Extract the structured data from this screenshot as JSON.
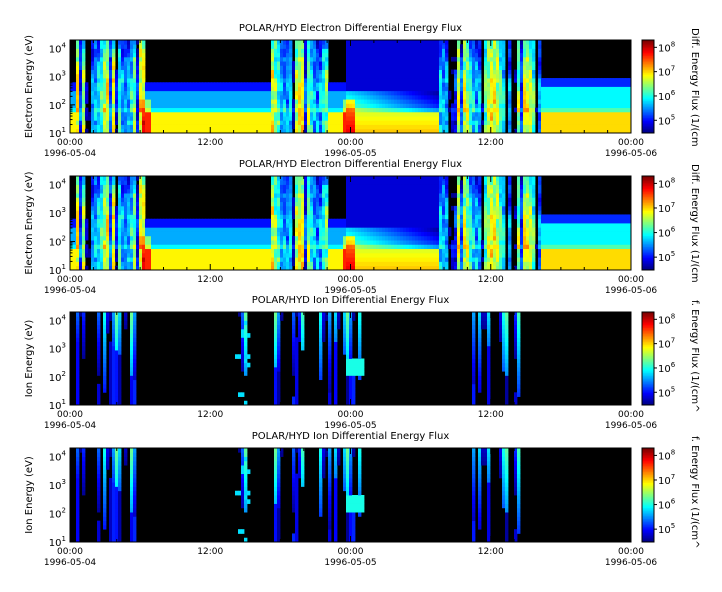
{
  "chart_data": [
    {
      "type": "heatmap",
      "title": "POLAR/HYD  Electron Differential Energy Flux",
      "ylabel": "Electron Energy (eV)",
      "colorbar_label": "Diff. Energy Flux (1/(cm",
      "y_scale": "log",
      "ylim": [
        10,
        20000
      ],
      "y_ticks": [
        {
          "v": 10,
          "m": "1"
        },
        {
          "v": 100,
          "m": "2"
        },
        {
          "v": 1000,
          "m": "3"
        },
        {
          "v": 10000,
          "m": "4"
        }
      ],
      "x_range_hours": [
        0,
        48
      ],
      "x_ticks": [
        {
          "h": 0,
          "time": "00:00",
          "date": "1996-05-04"
        },
        {
          "h": 12,
          "time": "12:00",
          "date": ""
        },
        {
          "h": 24,
          "time": "00:00",
          "date": "1996-05-05"
        },
        {
          "h": 36,
          "time": "12:00",
          "date": ""
        },
        {
          "h": 48,
          "time": "00:00",
          "date": "1996-05-06"
        }
      ],
      "colorbar_range": [
        30000,
        200000000
      ],
      "colorbar_ticks": [
        {
          "v": 100000,
          "m": "5"
        },
        {
          "v": 1000000,
          "m": "6"
        },
        {
          "v": 10000000,
          "m": "7"
        },
        {
          "v": 100000000,
          "m": "8"
        }
      ],
      "colormap": "rainbow",
      "species": "electron"
    },
    {
      "type": "heatmap",
      "title": "POLAR/HYD  Electron Differential Energy Flux",
      "ylabel": "Electron Energy (eV)",
      "colorbar_label": "Diff. Energy Flux (1/(cm",
      "y_scale": "log",
      "ylim": [
        10,
        20000
      ],
      "y_ticks": [
        {
          "v": 10,
          "m": "1"
        },
        {
          "v": 100,
          "m": "2"
        },
        {
          "v": 1000,
          "m": "3"
        },
        {
          "v": 10000,
          "m": "4"
        }
      ],
      "x_range_hours": [
        0,
        48
      ],
      "x_ticks": [
        {
          "h": 0,
          "time": "00:00",
          "date": "1996-05-04"
        },
        {
          "h": 12,
          "time": "12:00",
          "date": ""
        },
        {
          "h": 24,
          "time": "00:00",
          "date": "1996-05-05"
        },
        {
          "h": 36,
          "time": "12:00",
          "date": ""
        },
        {
          "h": 48,
          "time": "00:00",
          "date": "1996-05-06"
        }
      ],
      "colorbar_range": [
        30000,
        200000000
      ],
      "colorbar_ticks": [
        {
          "v": 100000,
          "m": "5"
        },
        {
          "v": 1000000,
          "m": "6"
        },
        {
          "v": 10000000,
          "m": "7"
        },
        {
          "v": 100000000,
          "m": "8"
        }
      ],
      "colormap": "rainbow",
      "species": "electron"
    },
    {
      "type": "heatmap",
      "title": "POLAR/HYD  Ion Differential Energy Flux",
      "ylabel": "Ion Energy (eV)",
      "colorbar_label": "f. Energy Flux (1/(cm^",
      "y_scale": "log",
      "ylim": [
        10,
        20000
      ],
      "y_ticks": [
        {
          "v": 10,
          "m": "1"
        },
        {
          "v": 100,
          "m": "2"
        },
        {
          "v": 1000,
          "m": "3"
        },
        {
          "v": 10000,
          "m": "4"
        }
      ],
      "x_range_hours": [
        0,
        48
      ],
      "x_ticks": [
        {
          "h": 0,
          "time": "00:00",
          "date": "1996-05-04"
        },
        {
          "h": 12,
          "time": "12:00",
          "date": ""
        },
        {
          "h": 24,
          "time": "00:00",
          "date": "1996-05-05"
        },
        {
          "h": 36,
          "time": "12:00",
          "date": ""
        },
        {
          "h": 48,
          "time": "00:00",
          "date": "1996-05-06"
        }
      ],
      "colorbar_range": [
        30000,
        200000000
      ],
      "colorbar_ticks": [
        {
          "v": 100000,
          "m": "5"
        },
        {
          "v": 1000000,
          "m": "6"
        },
        {
          "v": 10000000,
          "m": "7"
        },
        {
          "v": 100000000,
          "m": "8"
        }
      ],
      "colormap": "rainbow",
      "species": "ion"
    },
    {
      "type": "heatmap",
      "title": "POLAR/HYD  Ion Differential Energy Flux",
      "ylabel": "Ion Energy (eV)",
      "colorbar_label": "f. Energy Flux (1/(cm^",
      "y_scale": "log",
      "ylim": [
        10,
        20000
      ],
      "y_ticks": [
        {
          "v": 10,
          "m": "1"
        },
        {
          "v": 100,
          "m": "2"
        },
        {
          "v": 1000,
          "m": "3"
        },
        {
          "v": 10000,
          "m": "4"
        }
      ],
      "x_range_hours": [
        0,
        48
      ],
      "x_ticks": [
        {
          "h": 0,
          "time": "00:00",
          "date": "1996-05-04"
        },
        {
          "h": 12,
          "time": "12:00",
          "date": ""
        },
        {
          "h": 24,
          "time": "00:00",
          "date": "1996-05-05"
        },
        {
          "h": 36,
          "time": "12:00",
          "date": ""
        },
        {
          "h": 48,
          "time": "00:00",
          "date": "1996-05-06"
        }
      ],
      "colorbar_range": [
        30000,
        200000000
      ],
      "colorbar_ticks": [
        {
          "v": 100000,
          "m": "5"
        },
        {
          "v": 1000000,
          "m": "6"
        },
        {
          "v": 10000000,
          "m": "7"
        },
        {
          "v": 100000000,
          "m": "8"
        }
      ],
      "colormap": "rainbow",
      "species": "ion"
    }
  ]
}
